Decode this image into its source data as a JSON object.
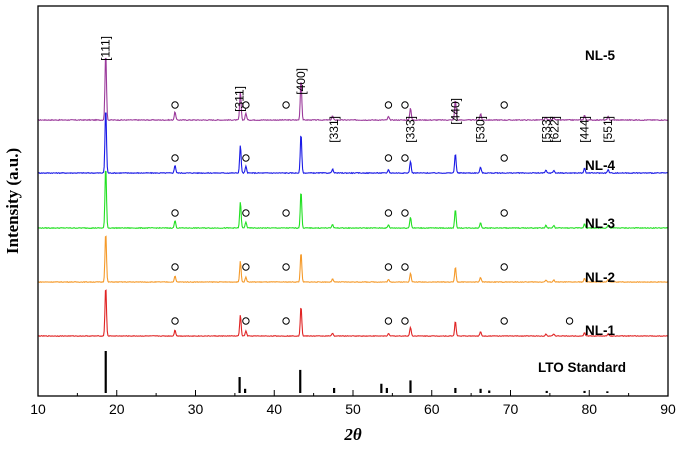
{
  "chart_data": {
    "type": "line",
    "title": "",
    "xlabel": "2θ",
    "ylabel": "Intensity (a.u.)",
    "xlim": [
      10,
      90
    ],
    "xticks": [
      10,
      20,
      30,
      40,
      50,
      60,
      70,
      80,
      90
    ],
    "grid": false,
    "peaks": [
      {
        "x": 18.6,
        "h": 1.0
      },
      {
        "x": 27.4,
        "h": 0.12
      },
      {
        "x": 35.7,
        "h": 0.42
      },
      {
        "x": 36.4,
        "h": 0.1
      },
      {
        "x": 43.4,
        "h": 0.6
      },
      {
        "x": 47.4,
        "h": 0.06
      },
      {
        "x": 54.5,
        "h": 0.05
      },
      {
        "x": 57.3,
        "h": 0.18
      },
      {
        "x": 63.0,
        "h": 0.3
      },
      {
        "x": 66.2,
        "h": 0.09
      },
      {
        "x": 74.5,
        "h": 0.04
      },
      {
        "x": 75.5,
        "h": 0.04
      },
      {
        "x": 79.4,
        "h": 0.07
      },
      {
        "x": 82.4,
        "h": 0.05
      }
    ],
    "impurity_markers": [
      27.4,
      36.4,
      41.5,
      54.5,
      56.6,
      69.2,
      77.5
    ],
    "series": [
      {
        "name": "NL-5",
        "color": "#9b3a9b",
        "markers": [
          27.4,
          36.4,
          41.5,
          54.5,
          56.6,
          69.2
        ]
      },
      {
        "name": "NL-4",
        "color": "#1a1ae6",
        "markers": [
          27.4,
          36.4,
          54.5,
          56.6,
          69.2
        ]
      },
      {
        "name": "NL-3",
        "color": "#22e022",
        "markers": [
          27.4,
          36.4,
          41.5,
          54.5,
          56.6,
          69.2
        ]
      },
      {
        "name": "NL-2",
        "color": "#f59a2a",
        "markers": [
          27.4,
          36.4,
          41.5,
          54.5,
          56.6,
          69.2
        ]
      },
      {
        "name": "NL-1",
        "color": "#e02424",
        "markers": [
          27.4,
          36.4,
          41.5,
          54.5,
          56.6,
          69.2,
          77.5
        ]
      }
    ],
    "standard": {
      "name": "LTO Standard",
      "color": "#000000",
      "lines": [
        {
          "x": 18.6,
          "h": 1.0
        },
        {
          "x": 35.6,
          "h": 0.38
        },
        {
          "x": 36.3,
          "h": 0.1
        },
        {
          "x": 43.3,
          "h": 0.55
        },
        {
          "x": 47.6,
          "h": 0.12
        },
        {
          "x": 53.6,
          "h": 0.22
        },
        {
          "x": 54.3,
          "h": 0.12
        },
        {
          "x": 57.3,
          "h": 0.3
        },
        {
          "x": 63.0,
          "h": 0.12
        },
        {
          "x": 66.2,
          "h": 0.1
        },
        {
          "x": 67.3,
          "h": 0.06
        },
        {
          "x": 74.6,
          "h": 0.05
        },
        {
          "x": 79.4,
          "h": 0.05
        },
        {
          "x": 82.3,
          "h": 0.04
        }
      ]
    },
    "hkl_labels": [
      {
        "text": "[111]",
        "x": 18.6
      },
      {
        "text": "[311]",
        "x": 35.6
      },
      {
        "text": "[400]",
        "x": 43.4
      },
      {
        "text": "[331]",
        "x": 47.6
      },
      {
        "text": "[333]",
        "x": 57.3
      },
      {
        "text": "[440]",
        "x": 63.0
      },
      {
        "text": "[530]",
        "x": 66.2
      },
      {
        "text": "[533]",
        "x": 74.6
      },
      {
        "text": "[622]",
        "x": 75.6
      },
      {
        "text": "[444]",
        "x": 79.4
      },
      {
        "text": "[551]",
        "x": 82.4
      }
    ]
  }
}
